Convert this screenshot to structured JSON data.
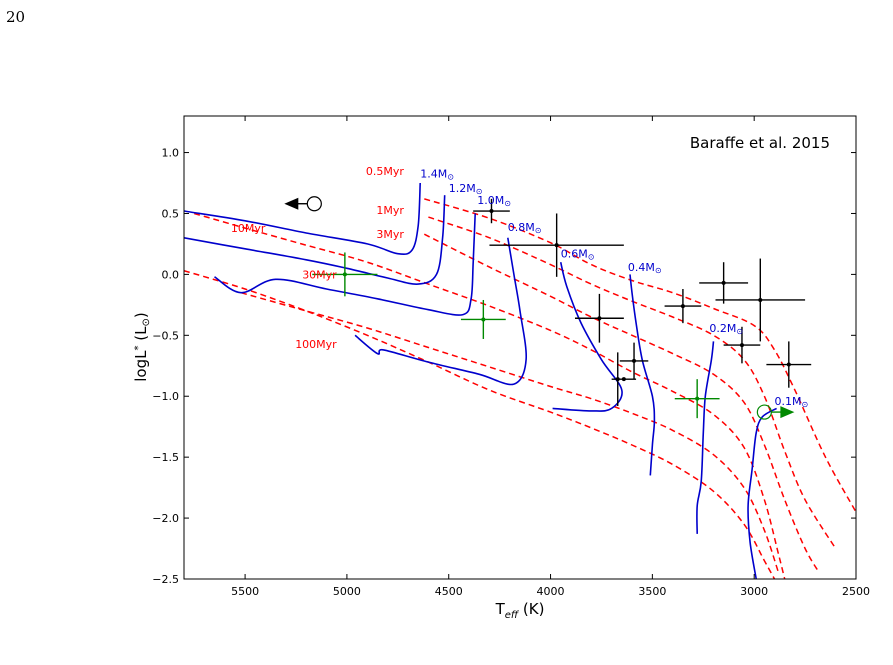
{
  "page_number": "20",
  "chart_data": {
    "type": "scatter",
    "reference": "Baraffe et al. 2015",
    "xlabel": "T",
    "xlabel_sub": "eff",
    "xlabel_unit": " (K)",
    "ylabel": "logL",
    "ylabel_sub": "*",
    "ylabel_unit": " (L",
    "ylabel_sun": "⊙",
    "ylabel_close": ")",
    "x_reversed": true,
    "xlim": [
      5800,
      2500
    ],
    "ylim": [
      -2.5,
      1.3
    ],
    "x_ticks": [
      5500,
      5000,
      4500,
      4000,
      3500,
      3000,
      2500
    ],
    "y_ticks": [
      1.0,
      0.5,
      0.0,
      -0.5,
      -1.0,
      -1.5,
      -2.0,
      -2.5
    ],
    "y_tick_labels": [
      "1.0",
      "0.5",
      "0.0",
      "−0.5",
      "−1.0",
      "−1.5",
      "−2.0",
      "−2.5"
    ],
    "isochrone_color": "#ff0000",
    "track_color": "#0000cc",
    "isochrones": [
      {
        "label": "0.5Myr",
        "label_at": [
          4720,
          0.85
        ],
        "points": [
          [
            4620,
            0.62
          ],
          [
            4300,
            0.46
          ],
          [
            4000,
            0.26
          ],
          [
            3800,
            0.08
          ],
          [
            3600,
            -0.05
          ],
          [
            3400,
            -0.15
          ],
          [
            3200,
            -0.28
          ],
          [
            3000,
            -0.42
          ],
          [
            2900,
            -0.62
          ],
          [
            2800,
            -0.95
          ],
          [
            2650,
            -1.5
          ],
          [
            2500,
            -1.95
          ]
        ]
      },
      {
        "label": "1Myr",
        "label_at": [
          4720,
          0.53
        ],
        "points": [
          [
            4600,
            0.47
          ],
          [
            4300,
            0.3
          ],
          [
            4000,
            0.08
          ],
          [
            3800,
            -0.08
          ],
          [
            3600,
            -0.22
          ],
          [
            3400,
            -0.35
          ],
          [
            3200,
            -0.5
          ],
          [
            3050,
            -0.7
          ],
          [
            2950,
            -1.0
          ],
          [
            2850,
            -1.45
          ],
          [
            2750,
            -1.85
          ],
          [
            2600,
            -2.25
          ]
        ]
      },
      {
        "label": "3Myr",
        "label_at": [
          4720,
          0.33
        ],
        "points": [
          [
            4620,
            0.33
          ],
          [
            4300,
            0.06
          ],
          [
            4000,
            -0.18
          ],
          [
            3800,
            -0.35
          ],
          [
            3600,
            -0.5
          ],
          [
            3400,
            -0.65
          ],
          [
            3200,
            -0.82
          ],
          [
            3050,
            -1.05
          ],
          [
            2950,
            -1.4
          ],
          [
            2850,
            -1.85
          ],
          [
            2750,
            -2.25
          ],
          [
            2680,
            -2.45
          ]
        ]
      },
      {
        "label": "10Myr",
        "label_at": [
          5400,
          0.38
        ],
        "points": [
          [
            5750,
            0.5
          ],
          [
            5500,
            0.38
          ],
          [
            5200,
            0.24
          ],
          [
            4900,
            0.1
          ],
          [
            4600,
            -0.08
          ],
          [
            4300,
            -0.26
          ],
          [
            4000,
            -0.46
          ],
          [
            3800,
            -0.62
          ],
          [
            3600,
            -0.8
          ],
          [
            3400,
            -0.96
          ],
          [
            3200,
            -1.15
          ],
          [
            3050,
            -1.42
          ],
          [
            2950,
            -1.85
          ],
          [
            2880,
            -2.3
          ],
          [
            2850,
            -2.5
          ]
        ]
      },
      {
        "label": "30Myr",
        "label_at": [
          5050,
          0.0
        ],
        "points": [
          [
            5520,
            -0.15
          ],
          [
            5200,
            -0.3
          ],
          [
            4900,
            -0.44
          ],
          [
            4600,
            -0.6
          ],
          [
            4300,
            -0.76
          ],
          [
            4000,
            -0.92
          ],
          [
            3800,
            -1.02
          ],
          [
            3600,
            -1.14
          ],
          [
            3400,
            -1.28
          ],
          [
            3200,
            -1.48
          ],
          [
            3050,
            -1.75
          ],
          [
            2950,
            -2.1
          ],
          [
            2880,
            -2.45
          ]
        ]
      },
      {
        "label": "100Myr",
        "label_at": [
          5050,
          -0.57
        ],
        "points": [
          [
            5800,
            0.03
          ],
          [
            5500,
            -0.12
          ],
          [
            5200,
            -0.3
          ],
          [
            4900,
            -0.5
          ],
          [
            4600,
            -0.72
          ],
          [
            4300,
            -0.95
          ],
          [
            4000,
            -1.13
          ],
          [
            3800,
            -1.26
          ],
          [
            3600,
            -1.4
          ],
          [
            3400,
            -1.56
          ],
          [
            3200,
            -1.78
          ],
          [
            3050,
            -2.05
          ],
          [
            2950,
            -2.35
          ],
          [
            2900,
            -2.5
          ]
        ]
      }
    ],
    "tracks": [
      {
        "label": "1.4M",
        "label_at": [
          4640,
          0.83
        ],
        "points": [
          [
            5800,
            0.52
          ],
          [
            5500,
            0.44
          ],
          [
            5200,
            0.34
          ],
          [
            4900,
            0.25
          ],
          [
            4750,
            0.17
          ],
          [
            4680,
            0.2
          ],
          [
            4650,
            0.4
          ],
          [
            4640,
            0.75
          ]
        ]
      },
      {
        "label": "1.2M",
        "label_at": [
          4500,
          0.71
        ],
        "points": [
          [
            5800,
            0.3
          ],
          [
            5500,
            0.21
          ],
          [
            5200,
            0.12
          ],
          [
            5000,
            0.05
          ],
          [
            4800,
            -0.03
          ],
          [
            4650,
            -0.08
          ],
          [
            4560,
            0.0
          ],
          [
            4530,
            0.3
          ],
          [
            4520,
            0.65
          ]
        ]
      },
      {
        "label": "1.0M",
        "label_at": [
          4360,
          0.61
        ],
        "points": [
          [
            5650,
            -0.02
          ],
          [
            5520,
            -0.15
          ],
          [
            5350,
            -0.04
          ],
          [
            5100,
            -0.12
          ],
          [
            4850,
            -0.2
          ],
          [
            4600,
            -0.29
          ],
          [
            4430,
            -0.33
          ],
          [
            4390,
            -0.2
          ],
          [
            4380,
            0.1
          ],
          [
            4370,
            0.5
          ]
        ]
      },
      {
        "label": "0.8M",
        "label_at": [
          4210,
          0.39
        ],
        "points": [
          [
            4960,
            -0.5
          ],
          [
            4850,
            -0.65
          ],
          [
            4820,
            -0.62
          ],
          [
            4600,
            -0.72
          ],
          [
            4350,
            -0.82
          ],
          [
            4180,
            -0.9
          ],
          [
            4120,
            -0.7
          ],
          [
            4150,
            -0.3
          ],
          [
            4180,
            0.0
          ],
          [
            4210,
            0.3
          ]
        ]
      },
      {
        "label": "0.6M",
        "label_at": [
          3950,
          0.17
        ],
        "points": [
          [
            3990,
            -1.1
          ],
          [
            3800,
            -1.12
          ],
          [
            3700,
            -1.1
          ],
          [
            3650,
            -0.95
          ],
          [
            3750,
            -0.7
          ],
          [
            3850,
            -0.4
          ],
          [
            3920,
            -0.1
          ],
          [
            3950,
            0.1
          ]
        ]
      },
      {
        "label": "0.4M",
        "label_at": [
          3620,
          0.06
        ],
        "points": [
          [
            3510,
            -1.65
          ],
          [
            3500,
            -1.4
          ],
          [
            3490,
            -1.2
          ],
          [
            3500,
            -1.0
          ],
          [
            3550,
            -0.7
          ],
          [
            3580,
            -0.4
          ],
          [
            3600,
            -0.15
          ],
          [
            3610,
            0.0
          ]
        ]
      },
      {
        "label": "0.2M",
        "label_at": [
          3220,
          -0.44
        ],
        "points": [
          [
            3280,
            -2.13
          ],
          [
            3280,
            -1.9
          ],
          [
            3260,
            -1.7
          ],
          [
            3250,
            -1.3
          ],
          [
            3240,
            -1.0
          ],
          [
            3210,
            -0.7
          ],
          [
            3200,
            -0.55
          ]
        ]
      },
      {
        "label": "0.1M",
        "label_at": [
          2900,
          -1.04
        ],
        "points": [
          [
            2990,
            -2.5
          ],
          [
            3020,
            -2.2
          ],
          [
            3030,
            -1.9
          ],
          [
            3010,
            -1.6
          ],
          [
            2990,
            -1.3
          ],
          [
            2960,
            -1.17
          ],
          [
            2890,
            -1.1
          ]
        ]
      }
    ],
    "black_points": [
      {
        "x": 4290,
        "y": 0.52,
        "xerr": 90,
        "yerr": 0.1
      },
      {
        "x": 3970,
        "y": 0.24,
        "xerr": 330,
        "yerr": 0.26
      },
      {
        "x": 3760,
        "y": -0.36,
        "xerr": 120,
        "yerr": 0.2
      },
      {
        "x": 3590,
        "y": -0.71,
        "xerr": 70,
        "yerr": 0.15
      },
      {
        "x": 3670,
        "y": -0.86,
        "xerr": 0,
        "yerr": 0.22
      },
      {
        "x": 3640,
        "y": -0.86,
        "xerr": 60,
        "yerr": 0
      },
      {
        "x": 3350,
        "y": -0.26,
        "xerr": 90,
        "yerr": 0.14
      },
      {
        "x": 3150,
        "y": -0.07,
        "xerr": 120,
        "yerr": 0.17
      },
      {
        "x": 3060,
        "y": -0.58,
        "xerr": 90,
        "yerr": 0.15
      },
      {
        "x": 2970,
        "y": -0.21,
        "xerr": 220,
        "yerr": 0.34
      },
      {
        "x": 2830,
        "y": -0.74,
        "xerr": 110,
        "yerr": 0.19
      }
    ],
    "green_points": [
      {
        "x": 5010,
        "y": 0.0,
        "xerr": 160,
        "yerr": 0.18
      },
      {
        "x": 4330,
        "y": -0.37,
        "xerr": 110,
        "yerr": 0.16
      },
      {
        "x": 3280,
        "y": -1.02,
        "xerr": 110,
        "yerr": 0.16
      }
    ],
    "upper_limits": [
      {
        "x": 5160,
        "y": 0.58,
        "color": "#000000",
        "arrow": "left"
      },
      {
        "x": 2950,
        "y": -1.13,
        "color": "#008800",
        "arrow": "right"
      }
    ]
  }
}
